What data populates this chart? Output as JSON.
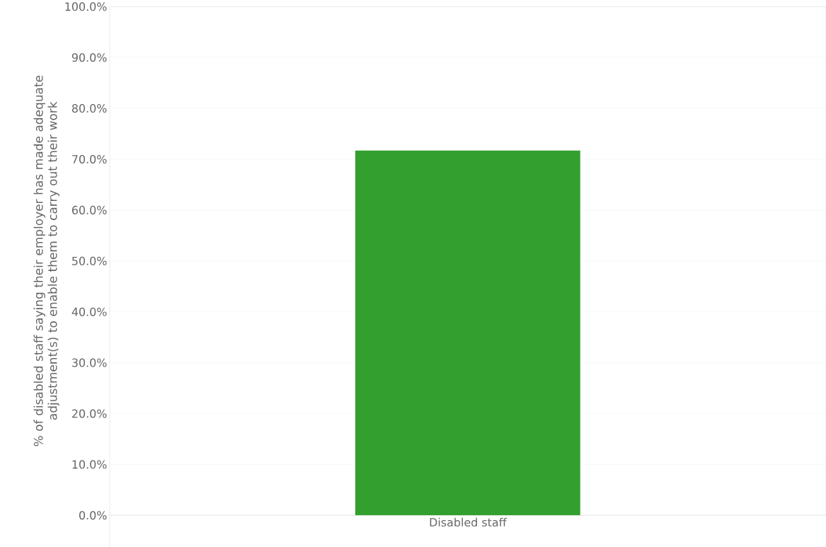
{
  "chart_data": {
    "type": "bar",
    "ylabel": "% of disabled staff saying their employer has made adequate adjustment(s) to enable them to carry out their work",
    "categories": [
      "Disabled staff"
    ],
    "values": [
      71.7
    ],
    "color": "#339f2e",
    "ylim": [
      0,
      100
    ],
    "yticks": [
      {
        "value": 0,
        "label": "0.0%"
      },
      {
        "value": 10,
        "label": "10.0%"
      },
      {
        "value": 20,
        "label": "20.0%"
      },
      {
        "value": 30,
        "label": "30.0%"
      },
      {
        "value": 40,
        "label": "40.0%"
      },
      {
        "value": 50,
        "label": "50.0%"
      },
      {
        "value": 60,
        "label": "60.0%"
      },
      {
        "value": 70,
        "label": "70.0%"
      },
      {
        "value": 80,
        "label": "80.0%"
      },
      {
        "value": 90,
        "label": "90.0%"
      },
      {
        "value": 100,
        "label": "100.0%"
      }
    ],
    "grid": "y"
  }
}
